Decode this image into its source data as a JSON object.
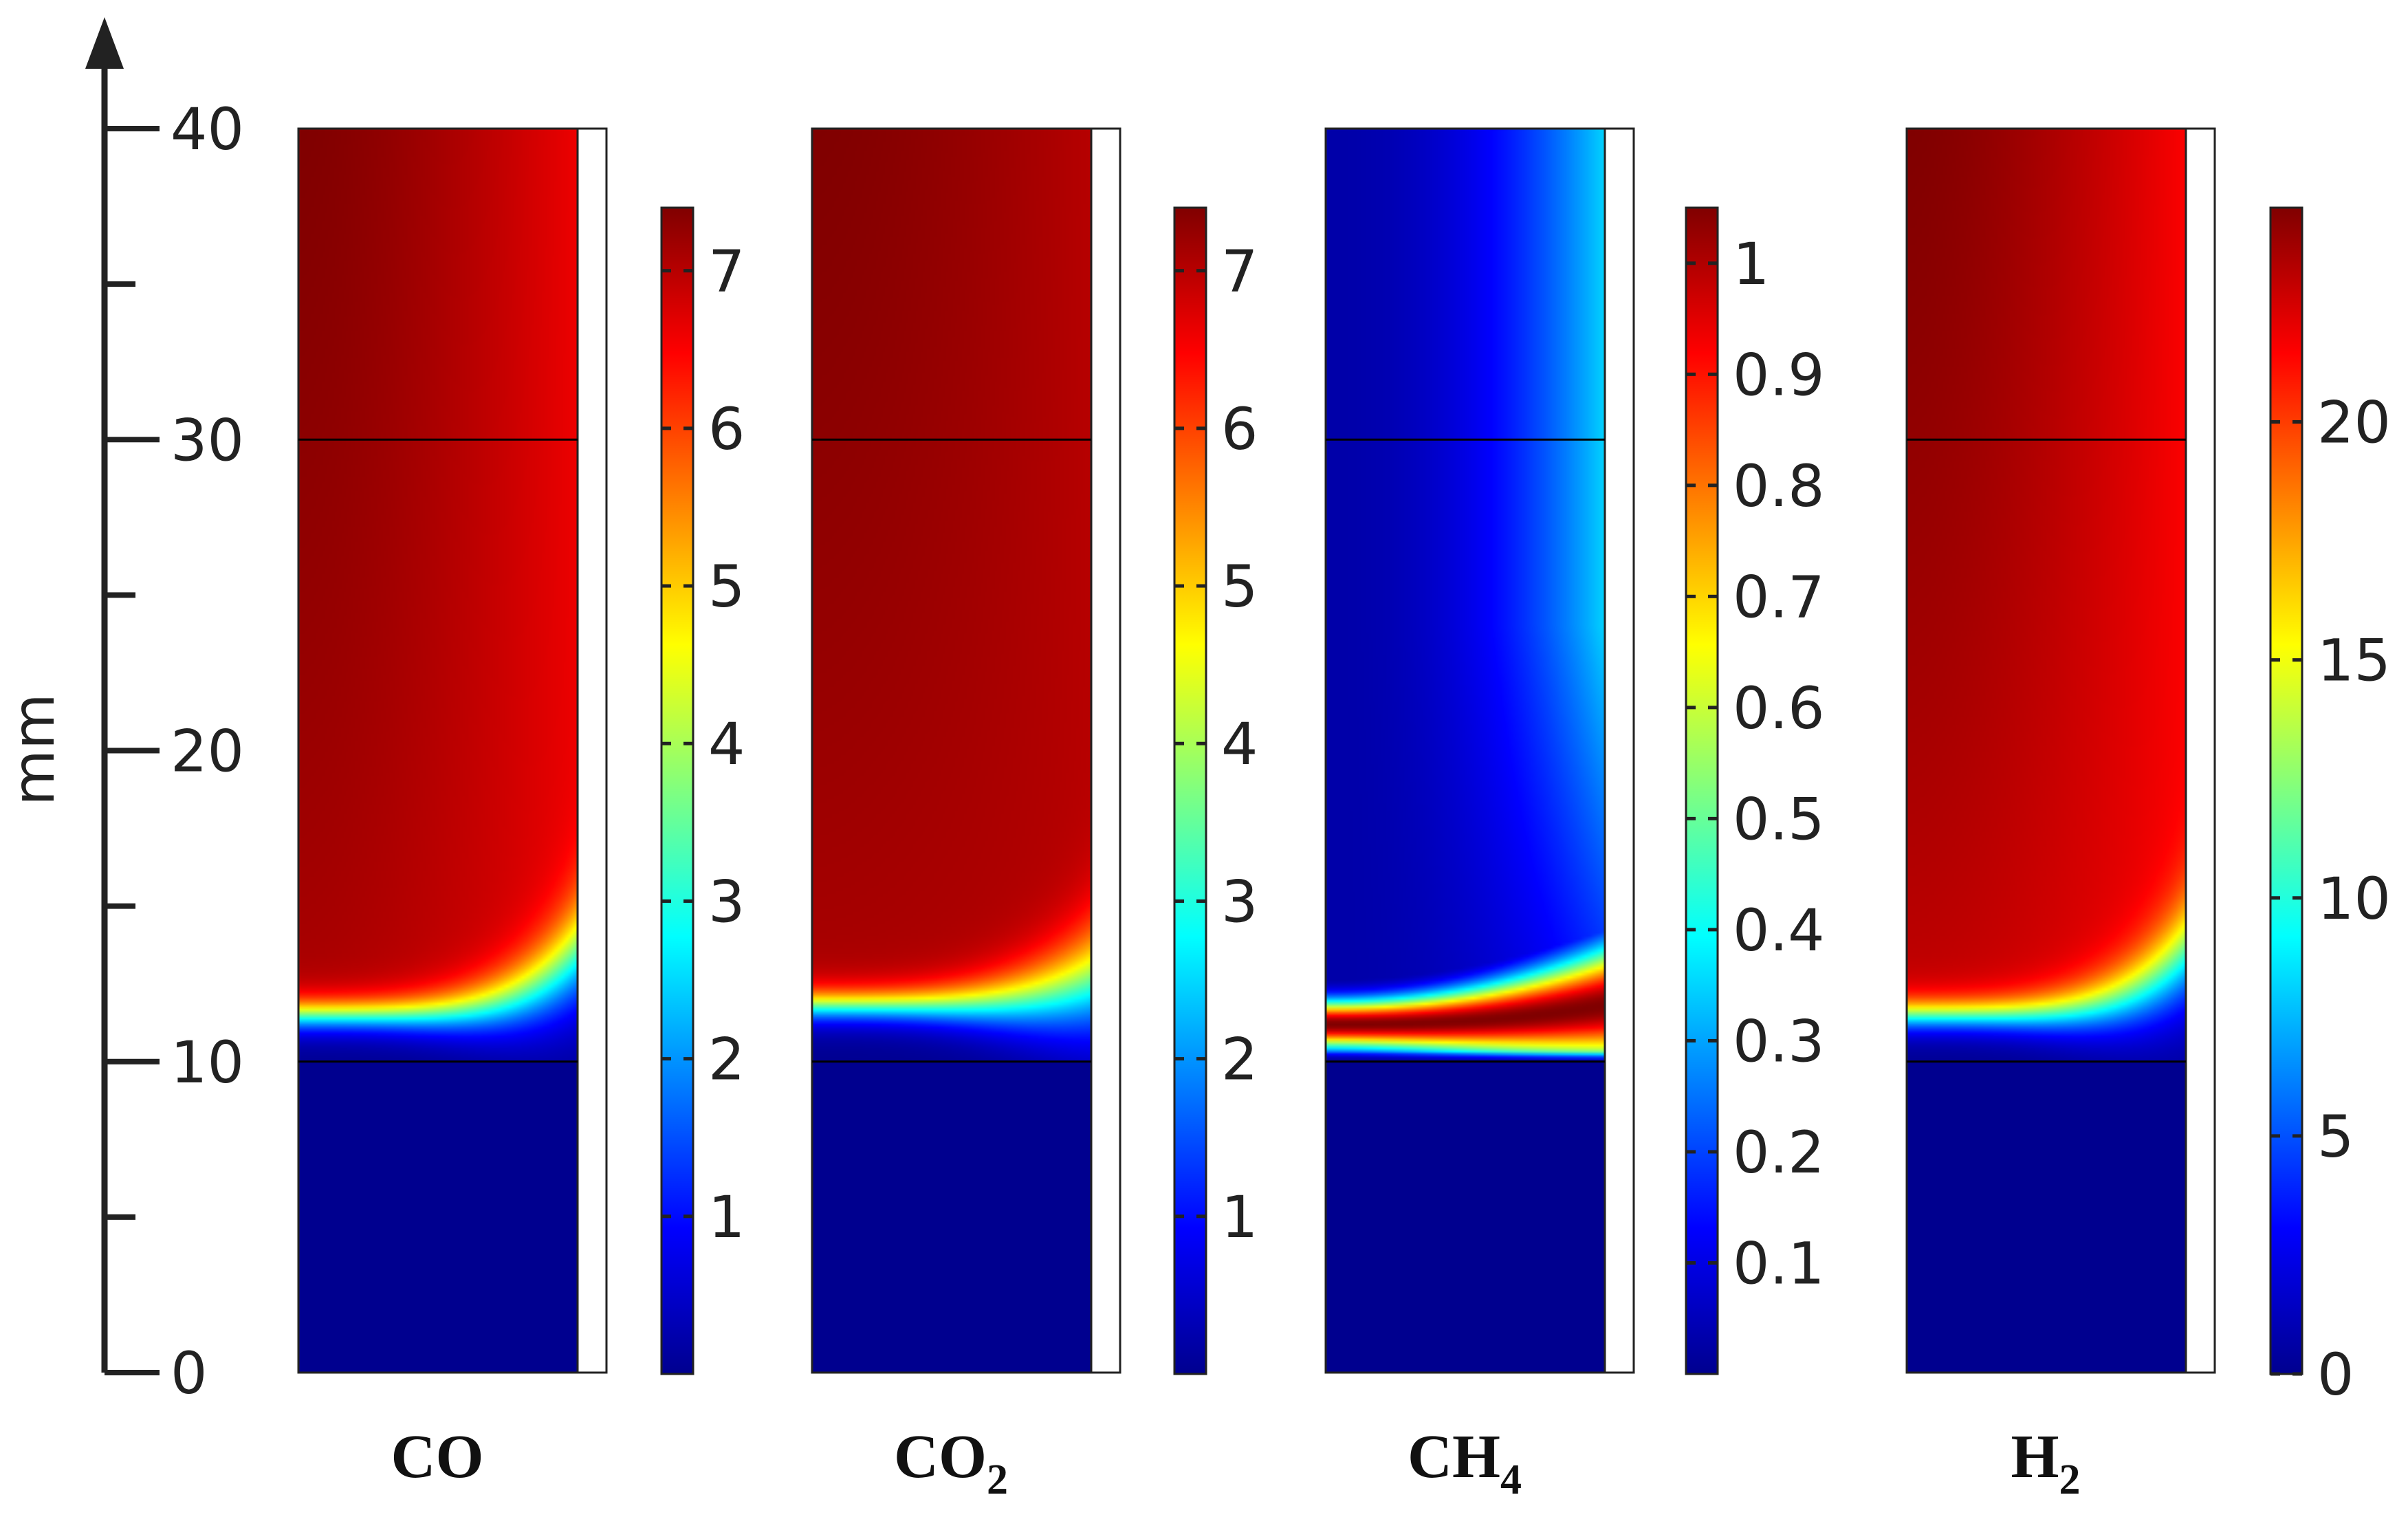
{
  "chart_data": {
    "type": "heatmap",
    "y_axis": {
      "label": "mm",
      "range": [
        0,
        40
      ],
      "major_ticks": [
        0,
        10,
        20,
        30,
        40
      ],
      "minor_ticks": [
        5,
        15,
        25,
        35
      ]
    },
    "layer_boundaries_mm": [
      10,
      30
    ],
    "panels": [
      {
        "id": "co",
        "label": "CO",
        "subscript": "",
        "colorbar": {
          "range": [
            0,
            7.4
          ],
          "ticks": [
            1,
            2,
            3,
            4,
            5,
            6,
            7
          ],
          "tick_labels": [
            "1",
            "2",
            "3",
            "4",
            "5",
            "6",
            "7"
          ]
        },
        "field": {
          "value_below_10mm": 0,
          "front_position_mm": 11.5,
          "plateau_value": 7.0,
          "top_value": 7.4,
          "wall_value": 6.6,
          "front_rise_near_wall_mm": 2.0
        }
      },
      {
        "id": "co2",
        "label": "CO",
        "subscript": "2",
        "colorbar": {
          "range": [
            0,
            7.4
          ],
          "ticks": [
            1,
            2,
            3,
            4,
            5,
            6,
            7
          ],
          "tick_labels": [
            "1",
            "2",
            "3",
            "4",
            "5",
            "6",
            "7"
          ]
        },
        "field": {
          "value_below_10mm": 0,
          "front_position_mm": 11.8,
          "plateau_value": 7.0,
          "top_value": 7.4,
          "wall_value": 7.0,
          "front_rise_near_wall_mm": 0.8
        }
      },
      {
        "id": "ch4",
        "label": "CH",
        "subscript": "4",
        "colorbar": {
          "range": [
            0,
            1.05
          ],
          "ticks": [
            0.1,
            0.2,
            0.3,
            0.4,
            0.5,
            0.6,
            0.7,
            0.8,
            0.9,
            1.0
          ],
          "tick_labels": [
            "0.1",
            "0.2",
            "0.3",
            "0.4",
            "0.5",
            "0.6",
            "0.7",
            "0.8",
            "0.9",
            "1"
          ]
        },
        "field": {
          "value_below_10mm": 0,
          "peak_position_mm": 11.2,
          "peak_value": 1.05,
          "background_value": 0.03,
          "wall_value_top": 0.35
        }
      },
      {
        "id": "h2",
        "label": "H",
        "subscript": "2",
        "colorbar": {
          "range": [
            0,
            24.5
          ],
          "ticks": [
            0,
            5,
            10,
            15,
            20
          ],
          "tick_labels": [
            "0",
            "5",
            "10",
            "15",
            "20"
          ]
        },
        "field": {
          "value_below_10mm": 0,
          "front_position_mm": 11.5,
          "plateau_value": 22.5,
          "top_value": 24.5,
          "wall_value": 21.5,
          "front_rise_near_wall_mm": 2.0
        }
      }
    ]
  }
}
